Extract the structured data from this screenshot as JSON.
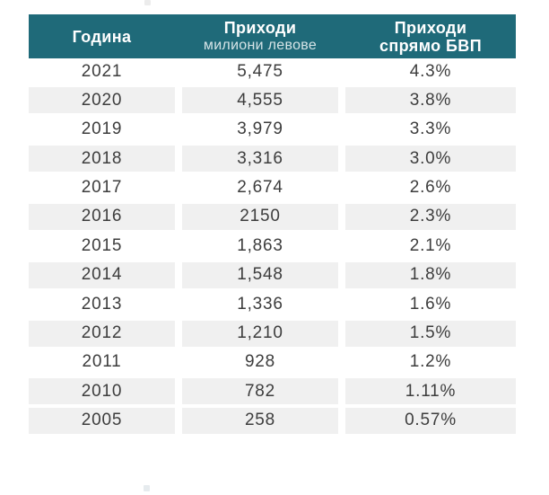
{
  "chart_data": {
    "type": "table",
    "title": "",
    "columns": [
      "Година",
      "Приходи милиони левове",
      "Приходи спрямо БВП"
    ],
    "rows": [
      [
        "2021",
        "5,475",
        "4.3%"
      ],
      [
        "2020",
        "4,555",
        "3.8%"
      ],
      [
        "2019",
        "3,979",
        "3.3%"
      ],
      [
        "2018",
        "3,316",
        "3.0%"
      ],
      [
        "2017",
        "2,674",
        "2.6%"
      ],
      [
        "2016",
        "2150",
        "2.3%"
      ],
      [
        "2015",
        "1,863",
        "2.1%"
      ],
      [
        "2014",
        "1,548",
        "1.8%"
      ],
      [
        "2013",
        "1,336",
        "1.6%"
      ],
      [
        "2012",
        "1,210",
        "1.5%"
      ],
      [
        "2011",
        "928",
        "1.2%"
      ],
      [
        "2010",
        "782",
        "1.11%"
      ],
      [
        "2005",
        "258",
        "0.57%"
      ]
    ]
  },
  "header": {
    "year": "Година",
    "revenue_title": "Приходи",
    "revenue_subtitle": "милиони левове",
    "gdp_title": "Приходи спрямо БВП"
  },
  "rows": [
    {
      "year": "2021",
      "revenue": "5,475",
      "gdp": "4.3%",
      "shaded": false
    },
    {
      "year": "2020",
      "revenue": "4,555",
      "gdp": "3.8%",
      "shaded": true
    },
    {
      "year": "2019",
      "revenue": "3,979",
      "gdp": "3.3%",
      "shaded": false
    },
    {
      "year": "2018",
      "revenue": "3,316",
      "gdp": "3.0%",
      "shaded": true
    },
    {
      "year": "2017",
      "revenue": "2,674",
      "gdp": "2.6%",
      "shaded": false
    },
    {
      "year": "2016",
      "revenue": "2150",
      "gdp": "2.3%",
      "shaded": true
    },
    {
      "year": "2015",
      "revenue": "1,863",
      "gdp": "2.1%",
      "shaded": false
    },
    {
      "year": "2014",
      "revenue": "1,548",
      "gdp": "1.8%",
      "shaded": true
    },
    {
      "year": "2013",
      "revenue": "1,336",
      "gdp": "1.6%",
      "shaded": false
    },
    {
      "year": "2012",
      "revenue": "1,210",
      "gdp": "1.5%",
      "shaded": true
    },
    {
      "year": "2011",
      "revenue": "928",
      "gdp": "1.2%",
      "shaded": false
    },
    {
      "year": "2010",
      "revenue": "782",
      "gdp": "1.11%",
      "shaded": true
    },
    {
      "year": "2005",
      "revenue": "258",
      "gdp": "0.57%",
      "shaded": true
    }
  ],
  "colors": {
    "header_bg": "#1F6A79",
    "row_shaded": "#F0F0F0",
    "text": "#3D3D3D"
  }
}
